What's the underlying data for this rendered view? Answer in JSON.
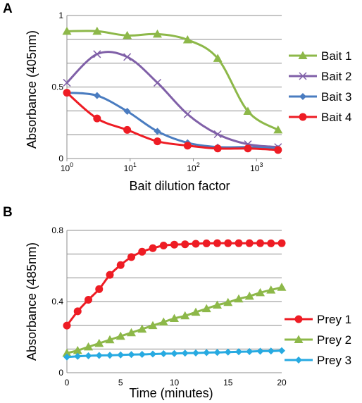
{
  "chart_data": [
    {
      "type": "line",
      "panel": "A",
      "xlabel": "Bait dilution factor",
      "ylabel": "Absorbance (405nm)",
      "xscale": "log",
      "xlim": [
        1,
        2500
      ],
      "ylim": [
        0,
        1.0
      ],
      "x_ticks": [
        {
          "value": 1,
          "base": "10",
          "exp": "0"
        },
        {
          "value": 10,
          "base": "10",
          "exp": "1"
        },
        {
          "value": 100,
          "base": "10",
          "exp": "2"
        },
        {
          "value": 1000,
          "base": "10",
          "exp": "3"
        }
      ],
      "y_ticks": [
        {
          "value": 0,
          "label": "0"
        },
        {
          "value": 0.5,
          "label": "0.5"
        },
        {
          "value": 1,
          "label": "1"
        }
      ],
      "grid": "horizontal",
      "legend_position": "right",
      "series": [
        {
          "name": "Bait 1",
          "color": "#8db849",
          "marker": "triangle",
          "x": [
            1,
            3,
            9,
            27,
            81,
            243,
            729,
            2187
          ],
          "y": [
            0.89,
            0.89,
            0.86,
            0.87,
            0.83,
            0.7,
            0.33,
            0.2
          ]
        },
        {
          "name": "Bait 2",
          "color": "#8060a8",
          "marker": "x",
          "x": [
            1,
            3,
            9,
            27,
            81,
            243,
            729,
            2187
          ],
          "y": [
            0.53,
            0.73,
            0.71,
            0.53,
            0.31,
            0.17,
            0.1,
            0.08
          ]
        },
        {
          "name": "Bait 3",
          "color": "#4a7cc0",
          "marker": "diamond",
          "x": [
            1,
            3,
            9,
            27,
            81,
            243,
            729,
            2187
          ],
          "y": [
            0.46,
            0.44,
            0.33,
            0.19,
            0.11,
            0.08,
            0.08,
            0.07
          ]
        },
        {
          "name": "Bait 4",
          "color": "#ee1c24",
          "marker": "circle",
          "x": [
            1,
            3,
            9,
            27,
            81,
            243,
            729,
            2187
          ],
          "y": [
            0.46,
            0.28,
            0.2,
            0.12,
            0.09,
            0.07,
            0.07,
            0.06
          ]
        }
      ]
    },
    {
      "type": "line",
      "panel": "B",
      "xlabel": "Time (minutes)",
      "ylabel": "Absorbance (485nm)",
      "xlim": [
        0,
        20
      ],
      "ylim": [
        0,
        0.8
      ],
      "x_ticks": [
        {
          "value": 0,
          "label": "0"
        },
        {
          "value": 5,
          "label": "5"
        },
        {
          "value": 10,
          "label": "10"
        },
        {
          "value": 15,
          "label": "15"
        },
        {
          "value": 20,
          "label": "20"
        }
      ],
      "y_ticks": [
        {
          "value": 0,
          "label": "0"
        },
        {
          "value": 0.4,
          "label": "0.4"
        },
        {
          "value": 0.8,
          "label": "0.8"
        }
      ],
      "grid": "horizontal",
      "legend_position": "right",
      "series": [
        {
          "name": "Prey 1",
          "color": "#ee1c24",
          "marker": "circle",
          "x": [
            0,
            1,
            2,
            3,
            4,
            5,
            6,
            7,
            8,
            9,
            10,
            11,
            12,
            13,
            14,
            15,
            16,
            17,
            18,
            19,
            20
          ],
          "y": [
            0.265,
            0.345,
            0.41,
            0.47,
            0.55,
            0.605,
            0.65,
            0.68,
            0.7,
            0.715,
            0.72,
            0.722,
            0.725,
            0.727,
            0.728,
            0.728,
            0.728,
            0.728,
            0.728,
            0.727,
            0.728
          ]
        },
        {
          "name": "Prey 2",
          "color": "#8db849",
          "marker": "triangle",
          "x": [
            0,
            1,
            2,
            3,
            4,
            5,
            6,
            7,
            8,
            9,
            10,
            11,
            12,
            13,
            14,
            15,
            16,
            17,
            18,
            19,
            20
          ],
          "y": [
            0.11,
            0.125,
            0.145,
            0.165,
            0.185,
            0.205,
            0.225,
            0.245,
            0.265,
            0.285,
            0.305,
            0.32,
            0.34,
            0.36,
            0.38,
            0.395,
            0.415,
            0.43,
            0.45,
            0.465,
            0.48
          ]
        },
        {
          "name": "Prey 3",
          "color": "#27aae1",
          "marker": "diamond",
          "x": [
            0,
            1,
            2,
            3,
            4,
            5,
            6,
            7,
            8,
            9,
            10,
            11,
            12,
            13,
            14,
            15,
            16,
            17,
            18,
            19,
            20
          ],
          "y": [
            0.088,
            0.092,
            0.095,
            0.097,
            0.098,
            0.1,
            0.102,
            0.103,
            0.105,
            0.107,
            0.108,
            0.11,
            0.111,
            0.113,
            0.114,
            0.116,
            0.118,
            0.119,
            0.121,
            0.122,
            0.124
          ]
        }
      ]
    }
  ]
}
